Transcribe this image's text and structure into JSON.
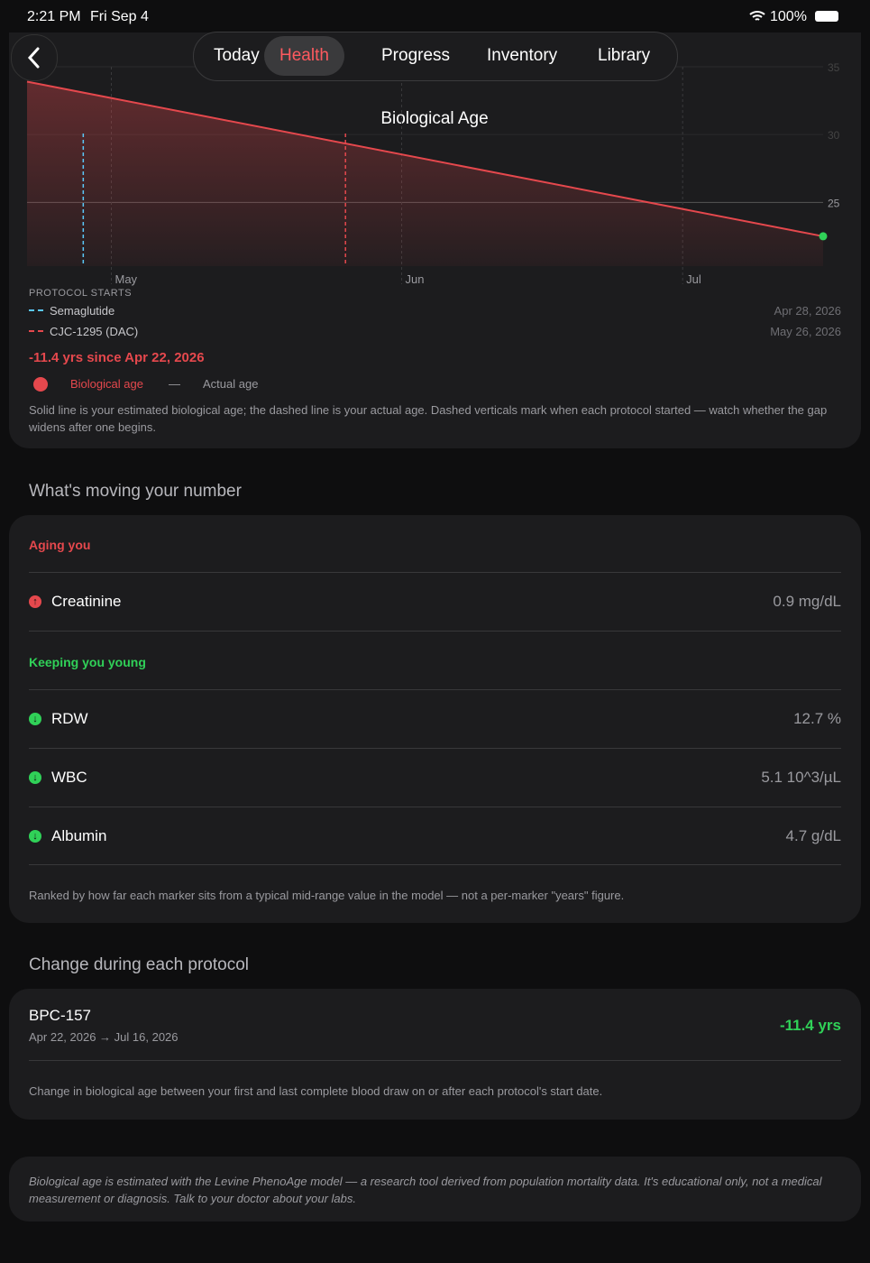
{
  "status": {
    "time": "2:21 PM",
    "date": "Fri Sep 4",
    "battery": "100%"
  },
  "tabs": [
    "Today",
    "Health",
    "Progress",
    "Inventory",
    "Library"
  ],
  "chart_data": {
    "type": "line",
    "title": "Biological Age",
    "x": [
      "Apr 22, 2026",
      "Jul 16, 2026"
    ],
    "series": [
      {
        "name": "Biological age",
        "color": "#e5484d",
        "values": [
          33.9,
          22.5
        ]
      }
    ],
    "xlim": [
      "Apr 22, 2026",
      "Jul 16, 2026"
    ],
    "xticks": [
      {
        "value": "May 1, 2026",
        "label": "May"
      },
      {
        "value": "Jun 1, 2026",
        "label": "Jun"
      },
      {
        "value": "Jul 1, 2026",
        "label": "Jul"
      }
    ],
    "ylim": [
      20.3,
      35
    ],
    "yticks": [
      25,
      30,
      35
    ],
    "protocols_heading": "PROTOCOL STARTS",
    "protocols": [
      {
        "name": "Semaglutide",
        "date": "Apr 28, 2026",
        "color": "#5ac8fa"
      },
      {
        "name": "CJC-1295 (DAC)",
        "date": "May 26, 2026",
        "color": "#e5484d"
      }
    ],
    "summary": "-11.4 yrs since Apr 22, 2026",
    "legend": [
      "Biological age",
      "—",
      "Actual age"
    ],
    "note": "Solid line is your estimated biological age; the dashed line is your actual age. Dashed verticals mark when each protocol started — watch whether the gap widens after one begins."
  },
  "moving": {
    "heading": "What's moving your number",
    "aging_label": "Aging you",
    "aging": [
      {
        "name": "Creatinine",
        "value": "0.9 mg/dL"
      }
    ],
    "young_label": "Keeping you young",
    "young": [
      {
        "name": "RDW",
        "value": "12.7 %"
      },
      {
        "name": "WBC",
        "value": "5.1 10^3/µL"
      },
      {
        "name": "Albumin",
        "value": "4.7 g/dL"
      }
    ],
    "note": "Ranked by how far each marker sits from a typical mid-range value in the model — not a per-marker \"years\" figure."
  },
  "change": {
    "heading": "Change during each protocol",
    "items": [
      {
        "name": "BPC-157",
        "range": "Apr 22, 2026 → Jul 16, 2026",
        "delta": "-11.4 yrs"
      }
    ],
    "note": "Change in biological age between your first and last complete blood draw on or after each protocol's start date."
  },
  "disclaimer": "Biological age is estimated with the Levine PhenoAge model — a research tool derived from population mortality data. It's educational only, not a medical measurement or diagnosis. Talk to your doctor about your labs."
}
